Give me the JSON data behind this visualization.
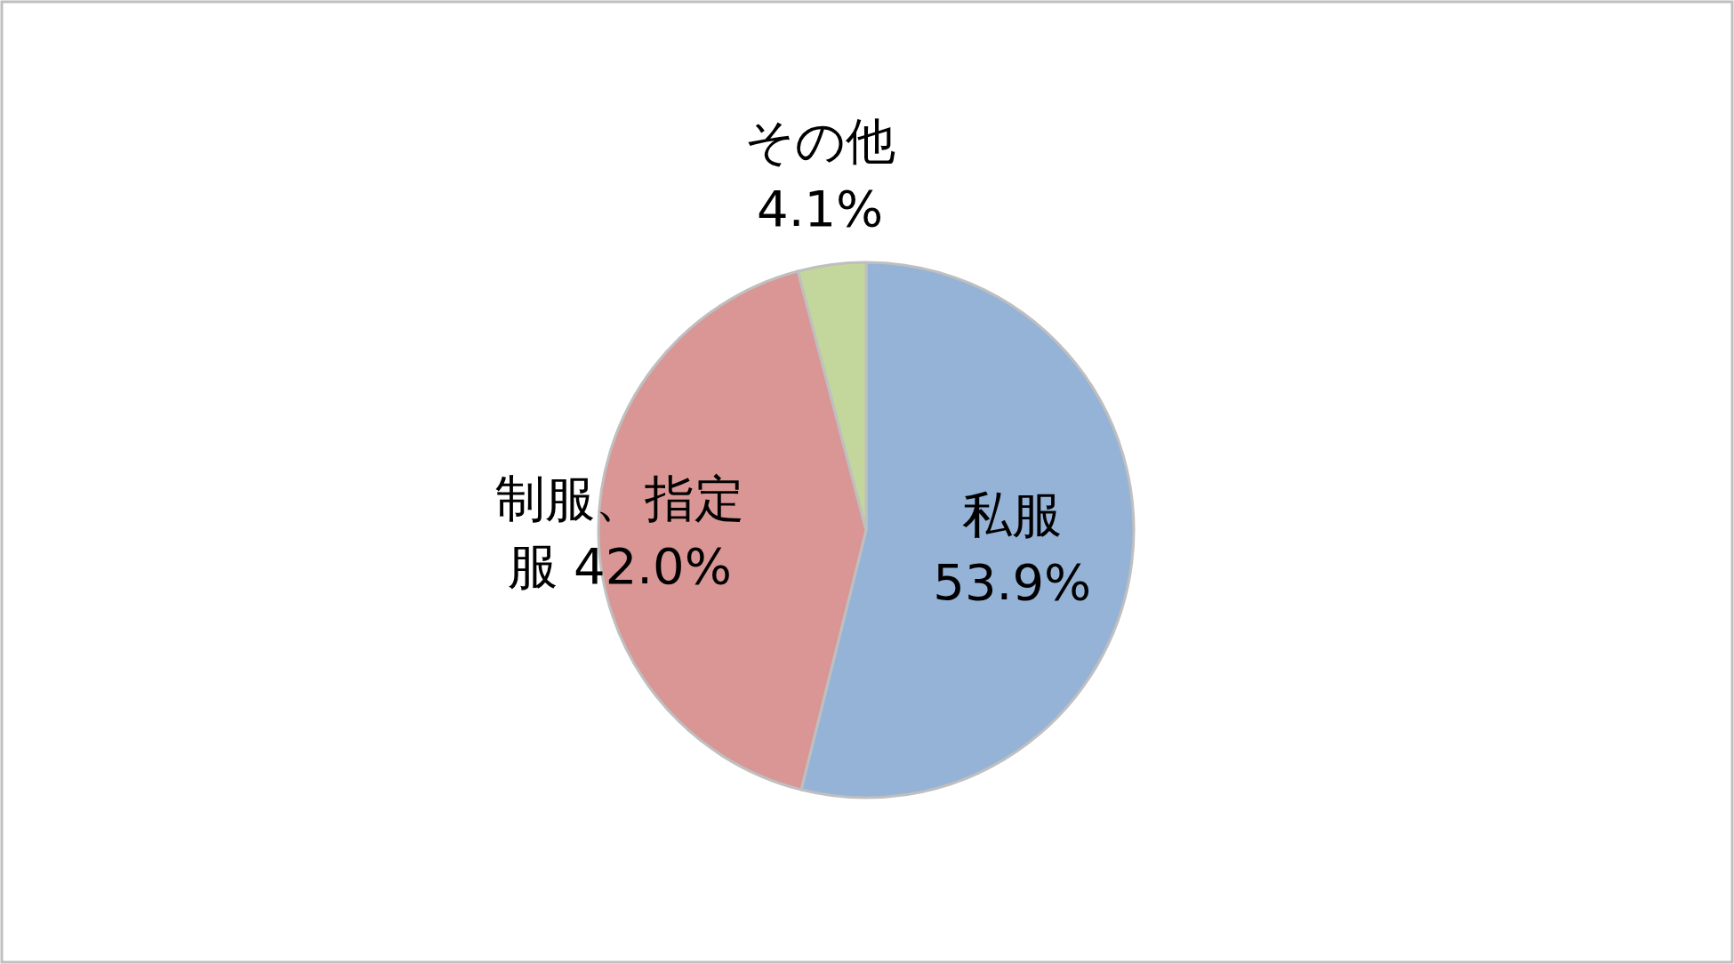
{
  "chart_data": {
    "type": "pie",
    "categories": [
      "私服",
      "制服、指定服",
      "その他"
    ],
    "values": [
      53.9,
      42.0,
      4.1
    ],
    "colors": [
      "#95b3d7",
      "#d99694",
      "#c3d69b"
    ],
    "value_labels": [
      "53.9%",
      "42.0%",
      "4.1%"
    ],
    "legend": false
  }
}
